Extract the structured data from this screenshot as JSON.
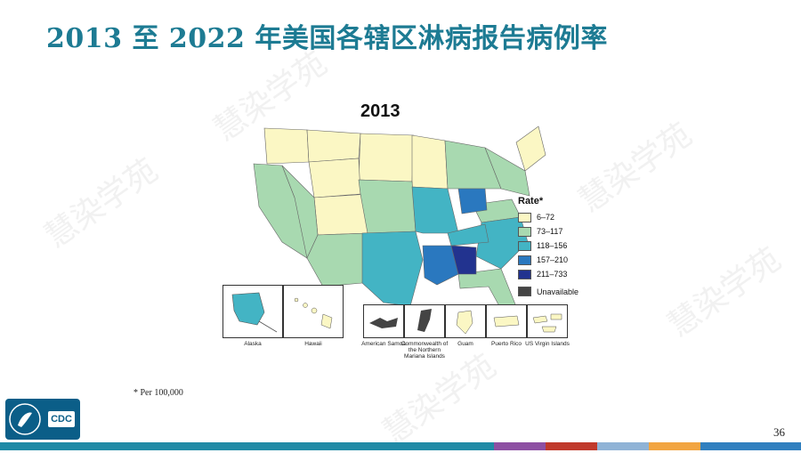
{
  "title": "2013 至 2022 年美国各辖区淋病报告病例率",
  "map": {
    "year": "2013",
    "legend_title": "Rate*",
    "legend": [
      {
        "label": "6–72",
        "color": "#fbf7c4"
      },
      {
        "label": "73–117",
        "color": "#a8d9b0"
      },
      {
        "label": "118–156",
        "color": "#43b4c4"
      },
      {
        "label": "157–210",
        "color": "#2a78bf"
      },
      {
        "label": "211–733",
        "color": "#22338f"
      }
    ],
    "unavailable_label": "Unavailable",
    "unavailable_color": "#444444",
    "insets": [
      "Alaska",
      "Hawaii",
      "American Samoa",
      "Commonwealth of the Northern Mariana Islands",
      "Guam",
      "Puerto Rico",
      "US Virgin Islands"
    ]
  },
  "footnote": "* Per 100,000",
  "page_number": "36",
  "logo_text": "CDC",
  "watermark": "慧染学苑",
  "bottom_bar_colors": [
    "#1f8aa6",
    "#8d4fa3",
    "#c0392b",
    "#8fb3d6",
    "#f2a541",
    "#2f7fbf"
  ]
}
